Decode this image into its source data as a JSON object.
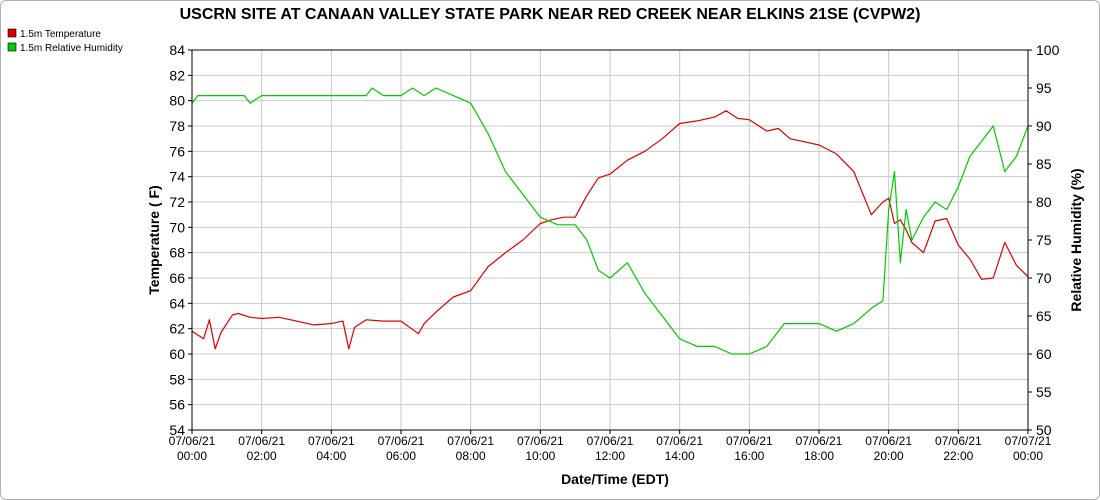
{
  "chart_data": {
    "type": "line",
    "title": "USCRN SITE AT CANAAN VALLEY STATE PARK NEAR RED CREEK NEAR ELKINS 21SE (CVPW2)",
    "xlabel": "Date/Time (EDT)",
    "ylabel_left": "Temperature ( F)",
    "ylabel_right": "Relative Humidity (%)",
    "xlim": [
      "07/06/21 00:00",
      "07/07/21 00:00"
    ],
    "ylim_left": [
      54,
      84
    ],
    "ylim_right": [
      50,
      100
    ],
    "grid": true,
    "legend_position": "top-left",
    "x_tick_labels": [
      {
        "date": "07/06/21",
        "time": "00:00"
      },
      {
        "date": "07/06/21",
        "time": "02:00"
      },
      {
        "date": "07/06/21",
        "time": "04:00"
      },
      {
        "date": "07/06/21",
        "time": "06:00"
      },
      {
        "date": "07/06/21",
        "time": "08:00"
      },
      {
        "date": "07/06/21",
        "time": "10:00"
      },
      {
        "date": "07/06/21",
        "time": "12:00"
      },
      {
        "date": "07/06/21",
        "time": "14:00"
      },
      {
        "date": "07/06/21",
        "time": "16:00"
      },
      {
        "date": "07/06/21",
        "time": "18:00"
      },
      {
        "date": "07/06/21",
        "time": "20:00"
      },
      {
        "date": "07/06/21",
        "time": "22:00"
      },
      {
        "date": "07/07/21",
        "time": "00:00"
      }
    ],
    "y_left_ticks": [
      54,
      56,
      58,
      60,
      62,
      64,
      66,
      68,
      70,
      72,
      74,
      76,
      78,
      80,
      82,
      84
    ],
    "y_right_ticks": [
      50,
      55,
      60,
      65,
      70,
      75,
      80,
      85,
      90,
      95,
      100
    ],
    "series": [
      {
        "name": "1.5m Temperature",
        "color": "#dd0000",
        "axis": "left",
        "x": [
          "07/06/21 00:00",
          "07/06/21 00:20",
          "07/06/21 00:30",
          "07/06/21 00:40",
          "07/06/21 00:50",
          "07/06/21 01:10",
          "07/06/21 01:20",
          "07/06/21 01:40",
          "07/06/21 02:00",
          "07/06/21 02:30",
          "07/06/21 03:00",
          "07/06/21 03:30",
          "07/06/21 04:00",
          "07/06/21 04:20",
          "07/06/21 04:30",
          "07/06/21 04:40",
          "07/06/21 05:00",
          "07/06/21 05:30",
          "07/06/21 06:00",
          "07/06/21 06:30",
          "07/06/21 06:40",
          "07/06/21 07:00",
          "07/06/21 07:30",
          "07/06/21 08:00",
          "07/06/21 08:30",
          "07/06/21 09:00",
          "07/06/21 09:30",
          "07/06/21 10:00",
          "07/06/21 10:20",
          "07/06/21 10:40",
          "07/06/21 11:00",
          "07/06/21 11:20",
          "07/06/21 11:40",
          "07/06/21 12:00",
          "07/06/21 12:30",
          "07/06/21 13:00",
          "07/06/21 13:30",
          "07/06/21 14:00",
          "07/06/21 14:30",
          "07/06/21 15:00",
          "07/06/21 15:20",
          "07/06/21 15:40",
          "07/06/21 16:00",
          "07/06/21 16:30",
          "07/06/21 16:50",
          "07/06/21 17:10",
          "07/06/21 17:30",
          "07/06/21 18:00",
          "07/06/21 18:30",
          "07/06/21 19:00",
          "07/06/21 19:30",
          "07/06/21 19:50",
          "07/06/21 20:00",
          "07/06/21 20:10",
          "07/06/21 20:20",
          "07/06/21 20:30",
          "07/06/21 20:40",
          "07/06/21 21:00",
          "07/06/21 21:20",
          "07/06/21 21:40",
          "07/06/21 22:00",
          "07/06/21 22:20",
          "07/06/21 22:40",
          "07/06/21 23:00",
          "07/06/21 23:20",
          "07/06/21 23:40",
          "07/07/21 00:00"
        ],
        "values": [
          61.8,
          61.2,
          62.7,
          60.4,
          61.7,
          63.1,
          63.2,
          62.9,
          62.8,
          62.9,
          62.6,
          62.3,
          62.4,
          62.6,
          60.4,
          62.1,
          62.7,
          62.6,
          62.6,
          61.6,
          62.4,
          63.3,
          64.5,
          65.0,
          66.9,
          68.0,
          69.0,
          70.3,
          70.6,
          70.8,
          70.8,
          72.5,
          73.9,
          74.2,
          75.3,
          76.0,
          77.0,
          78.2,
          78.4,
          78.7,
          79.2,
          78.6,
          78.5,
          77.6,
          77.8,
          77.0,
          76.8,
          76.5,
          75.8,
          74.4,
          71.0,
          72.0,
          72.3,
          70.3,
          70.6,
          69.8,
          68.8,
          68.0,
          70.5,
          70.7,
          68.6,
          67.5,
          65.9,
          66.0,
          68.8,
          67.0,
          66.1
        ]
      },
      {
        "name": "1.5m Relative Humidity",
        "color": "#00cc00",
        "axis": "right",
        "x": [
          "07/06/21 00:00",
          "07/06/21 00:10",
          "07/06/21 01:00",
          "07/06/21 01:30",
          "07/06/21 01:40",
          "07/06/21 02:00",
          "07/06/21 03:00",
          "07/06/21 04:00",
          "07/06/21 05:00",
          "07/06/21 05:10",
          "07/06/21 05:30",
          "07/06/21 05:40",
          "07/06/21 06:00",
          "07/06/21 06:20",
          "07/06/21 06:40",
          "07/06/21 07:00",
          "07/06/21 07:30",
          "07/06/21 08:00",
          "07/06/21 08:30",
          "07/06/21 09:00",
          "07/06/21 09:30",
          "07/06/21 10:00",
          "07/06/21 10:30",
          "07/06/21 11:00",
          "07/06/21 11:20",
          "07/06/21 11:40",
          "07/06/21 12:00",
          "07/06/21 12:30",
          "07/06/21 13:00",
          "07/06/21 13:30",
          "07/06/21 14:00",
          "07/06/21 14:30",
          "07/06/21 15:00",
          "07/06/21 15:30",
          "07/06/21 16:00",
          "07/06/21 16:30",
          "07/06/21 17:00",
          "07/06/21 17:30",
          "07/06/21 18:00",
          "07/06/21 18:30",
          "07/06/21 19:00",
          "07/06/21 19:30",
          "07/06/21 19:50",
          "07/06/21 20:00",
          "07/06/21 20:10",
          "07/06/21 20:20",
          "07/06/21 20:30",
          "07/06/21 20:40",
          "07/06/21 21:00",
          "07/06/21 21:20",
          "07/06/21 21:40",
          "07/06/21 22:00",
          "07/06/21 22:20",
          "07/06/21 22:40",
          "07/06/21 23:00",
          "07/06/21 23:20",
          "07/06/21 23:40",
          "07/07/21 00:00"
        ],
        "values": [
          93,
          94,
          94,
          94,
          93,
          94,
          94,
          94,
          94,
          95,
          94,
          94,
          94,
          95,
          94,
          95,
          94,
          93,
          89,
          84,
          81,
          78,
          77,
          77,
          75,
          71,
          70,
          72,
          68,
          65,
          62,
          61,
          61,
          60,
          60,
          61,
          64,
          64,
          64,
          63,
          64,
          66,
          67,
          79,
          84,
          72,
          79,
          75,
          78,
          80,
          79,
          82,
          86,
          88,
          90,
          84,
          86,
          90
        ]
      }
    ]
  }
}
